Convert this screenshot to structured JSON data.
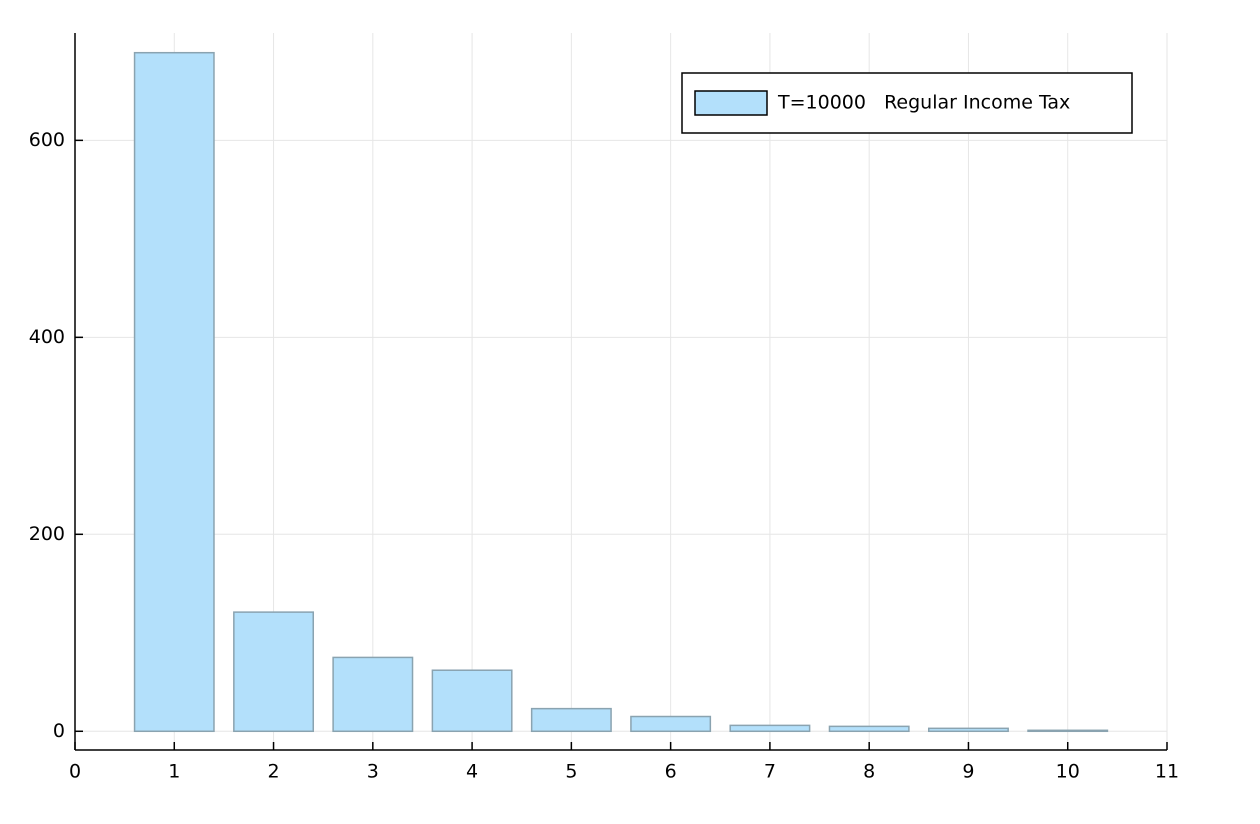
{
  "chart_data": {
    "type": "bar",
    "x": [
      1,
      2,
      3,
      4,
      5,
      6,
      7,
      8,
      9,
      10
    ],
    "series": [
      {
        "name": "T=10000   Regular Income Tax",
        "color": "#b3e0fb",
        "values": [
          689,
          121,
          75,
          62,
          23,
          15,
          6,
          5,
          3,
          1
        ]
      }
    ],
    "xlim": [
      0,
      11
    ],
    "xticks": [
      0,
      1,
      2,
      3,
      4,
      5,
      6,
      7,
      8,
      9,
      10,
      11
    ],
    "ylim": [
      -19,
      709
    ],
    "yticks": [
      0,
      200,
      400,
      600
    ],
    "grid": true,
    "legend": "top right"
  }
}
